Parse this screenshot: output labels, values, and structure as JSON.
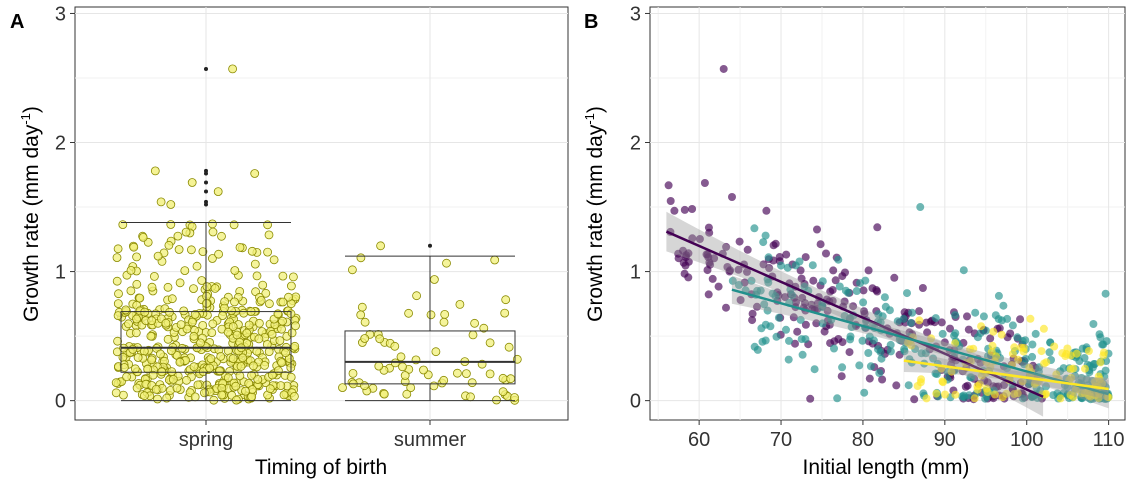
{
  "chart_data": [
    {
      "panel": "A",
      "type": "box",
      "xlabel": "Timing of birth",
      "ylabel_prefix": "Growth rate (mm day",
      "ylabel_sup": "-1",
      "ylabel_suffix": ")",
      "ylim": [
        -0.15,
        3.05
      ],
      "yticks": [
        0,
        1,
        2,
        3
      ],
      "grid": true,
      "point_color": "#f2f07a",
      "point_stroke": "#8a8a00",
      "categories": [
        "spring",
        "summer"
      ],
      "boxes": [
        {
          "category": "spring",
          "whisker_low": 0.0,
          "q1": 0.22,
          "median": 0.41,
          "q3": 0.69,
          "whisker_high": 1.38,
          "outliers": [
            1.52,
            1.54,
            1.62,
            1.69,
            1.76,
            1.78,
            2.57
          ],
          "n_points": 520
        },
        {
          "category": "summer",
          "whisker_low": 0.0,
          "q1": 0.13,
          "median": 0.3,
          "q3": 0.54,
          "whisker_high": 1.12,
          "outliers": [
            1.2
          ],
          "n_points": 75
        }
      ]
    },
    {
      "panel": "B",
      "type": "scatter",
      "xlabel": "Initial length (mm)",
      "ylabel_prefix": "Growth rate (mm day",
      "ylabel_sup": "-1",
      "ylabel_suffix": ")",
      "xlim": [
        54,
        112
      ],
      "ylim": [
        -0.15,
        3.05
      ],
      "xticks": [
        60,
        70,
        80,
        90,
        100,
        110
      ],
      "yticks": [
        0,
        1,
        2,
        3
      ],
      "grid": true,
      "series": [
        {
          "color": "#440154",
          "x_range": [
            56,
            102
          ],
          "fit": [
            [
              56,
              1.31
            ],
            [
              102,
              0.03
            ]
          ],
          "ci": 0.07,
          "n_points": 260
        },
        {
          "color": "#21908c",
          "x_range": [
            64,
            110
          ],
          "fit": [
            [
              64,
              0.86
            ],
            [
              110,
              0.05
            ]
          ],
          "ci": 0.05,
          "n_points": 300
        },
        {
          "color": "#fde725",
          "x_range": [
            85,
            110
          ],
          "fit": [
            [
              85,
              0.31
            ],
            [
              110,
              0.09
            ]
          ],
          "ci": 0.04,
          "n_points": 110
        }
      ]
    }
  ]
}
